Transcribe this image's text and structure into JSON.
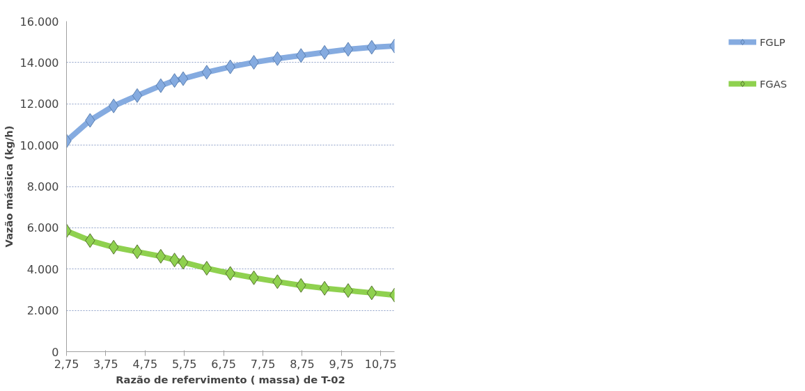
{
  "chart_data": {
    "type": "line",
    "xlabel": "Razão de refervimento ( massa) de T-02",
    "ylabel": "Vazão mássica (kg/h)",
    "x": [
      2.75,
      3.35,
      3.95,
      4.55,
      5.15,
      5.5,
      5.72,
      6.32,
      6.92,
      7.52,
      8.12,
      8.72,
      9.32,
      9.92,
      10.52,
      11.1
    ],
    "series": [
      {
        "name": "FGLP",
        "color": "#85abe0",
        "values": [
          10200,
          11200,
          11900,
          12400,
          12880,
          13130,
          13220,
          13530,
          13790,
          14010,
          14190,
          14340,
          14490,
          14640,
          14740,
          14800
        ]
      },
      {
        "name": "FGAS",
        "color": "#8fd14f",
        "values": [
          5850,
          5380,
          5060,
          4840,
          4620,
          4440,
          4330,
          4040,
          3790,
          3580,
          3390,
          3210,
          3070,
          2960,
          2850,
          2740
        ]
      }
    ],
    "xlim": [
      2.75,
      11.1
    ],
    "xticks": [
      {
        "value": 2.75,
        "label": "2,75"
      },
      {
        "value": 3.75,
        "label": "3,75"
      },
      {
        "value": 4.75,
        "label": "4,75"
      },
      {
        "value": 5.75,
        "label": "5,75"
      },
      {
        "value": 6.75,
        "label": "6,75"
      },
      {
        "value": 7.75,
        "label": "7,75"
      },
      {
        "value": 8.75,
        "label": "8,75"
      },
      {
        "value": 9.75,
        "label": "9,75"
      },
      {
        "value": 10.75,
        "label": "10,75"
      }
    ],
    "ylim": [
      0,
      16000
    ],
    "yticks": [
      0,
      {
        "value": 2000,
        "label": "2.000"
      },
      {
        "value": 4000,
        "label": "4.000"
      },
      {
        "value": 6000,
        "label": "6.000"
      },
      {
        "value": 8000,
        "label": "8.000"
      },
      {
        "value": 10000,
        "label": "10.000"
      },
      {
        "value": 12000,
        "label": "12.000"
      },
      {
        "value": 14000,
        "label": "14.000"
      },
      {
        "value": 16000,
        "label": "16.000"
      }
    ],
    "grid": "y",
    "legend": "right",
    "marker": "diamond",
    "line_style": "solid"
  }
}
